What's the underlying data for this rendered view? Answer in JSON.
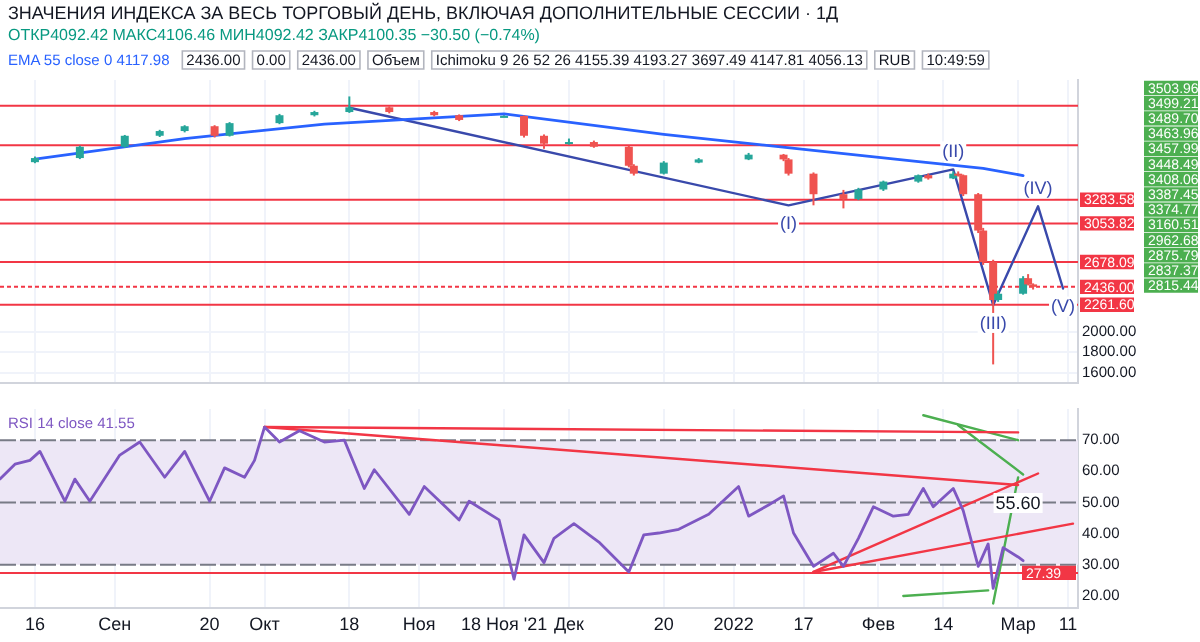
{
  "chart_data": [
    {
      "type": "candlestick",
      "title": "ЗНАЧЕНИЯ ИНДЕКСА ЗА ВЕСЬ ТОРГОВЫЙ ДЕНЬ, ВКЛЮЧАЯ ДОПОЛНИТЕЛЬНЫЕ СЕССИИ · 1Д",
      "subtitle": "ОТКР4092.42 МАКС4106.46 МИН4092.42 ЗАКР4100.35 −30.50 (−0.74%)",
      "x": [
        "2021-08-16",
        "2021-08-25",
        "2021-09-03",
        "2021-09-10",
        "2021-09-15",
        "2021-09-21",
        "2021-09-24",
        "2021-10-04",
        "2021-10-11",
        "2021-10-18",
        "2021-10-26",
        "2021-11-04",
        "2021-11-09",
        "2021-11-18",
        "2021-11-22",
        "2021-11-26",
        "2021-12-01",
        "2021-12-06",
        "2021-12-13",
        "2021-12-14",
        "2021-12-20",
        "2021-12-27",
        "2022-01-06",
        "2022-01-13",
        "2022-01-14",
        "2022-01-19",
        "2022-01-25",
        "2022-01-28",
        "2022-02-02",
        "2022-02-09",
        "2022-02-11",
        "2022-02-16",
        "2022-02-17",
        "2022-02-18",
        "2022-02-21",
        "2022-02-22",
        "2022-02-24",
        "2022-02-25",
        "2022-03-02",
        "2022-03-03",
        "2022-03-04"
      ],
      "ohlc": [
        [
          3650,
          3705,
          3640,
          3690
        ],
        [
          3690,
          3810,
          3680,
          3800
        ],
        [
          3800,
          3915,
          3790,
          3907
        ],
        [
          3907,
          3965,
          3895,
          3953
        ],
        [
          3953,
          4010,
          3940,
          4000
        ],
        [
          4000,
          4010,
          3890,
          3907
        ],
        [
          3907,
          4040,
          3900,
          4030
        ],
        [
          4030,
          4120,
          4020,
          4107
        ],
        [
          4107,
          4150,
          4095,
          4138
        ],
        [
          4138,
          4290,
          4130,
          4184
        ],
        [
          4184,
          4195,
          4125,
          4138
        ],
        [
          4138,
          4150,
          4095,
          4107
        ],
        [
          4107,
          4115,
          4050,
          4061
        ],
        [
          4092.42,
          4106.46,
          4092.42,
          4100.35
        ],
        [
          4100,
          4105,
          3890,
          3907
        ],
        [
          3907,
          3920,
          3780,
          3830
        ],
        [
          3830,
          3880,
          3820,
          3846
        ],
        [
          3846,
          3860,
          3790,
          3800
        ],
        [
          3800,
          3810,
          3600,
          3615
        ],
        [
          3615,
          3630,
          3520,
          3538
        ],
        [
          3538,
          3660,
          3530,
          3646
        ],
        [
          3646,
          3690,
          3640,
          3677
        ],
        [
          3677,
          3740,
          3670,
          3723
        ],
        [
          3723,
          3730,
          3660,
          3677
        ],
        [
          3677,
          3690,
          3520,
          3538
        ],
        [
          3538,
          3550,
          3230,
          3338
        ],
        [
          3338,
          3380,
          3200,
          3292
        ],
        [
          3292,
          3400,
          3280,
          3384
        ],
        [
          3384,
          3470,
          3370,
          3461
        ],
        [
          3461,
          3530,
          3450,
          3523
        ],
        [
          3523,
          3540,
          3480,
          3492
        ],
        [
          3492,
          3560,
          3485,
          3538
        ],
        [
          3538,
          3560,
          3510,
          3523
        ],
        [
          3523,
          3530,
          3320,
          3338
        ],
        [
          3338,
          3350,
          2960,
          2984
        ],
        [
          2984,
          3010,
          2650,
          2677
        ],
        [
          2677,
          2700,
          1681,
          2308
        ],
        [
          2308,
          2400,
          2290,
          2369
        ],
        [
          2369,
          2540,
          2360,
          2520
        ],
        [
          2520,
          2560,
          2450,
          2460
        ],
        [
          2460,
          2470,
          2410,
          2436
        ]
      ],
      "series": [
        {
          "type": "line",
          "name": "EMA 55 close 0 4117.98",
          "color": "#2962ff",
          "x": [
            "2021-08-16",
            "2021-09-15",
            "2021-10-13",
            "2021-11-18",
            "2021-12-20",
            "2022-01-18",
            "2022-02-10",
            "2022-02-22",
            "2022-03-02"
          ],
          "values": [
            3680,
            3880,
            4020,
            4120,
            3920,
            3770,
            3650,
            3590,
            3520
          ]
        },
        {
          "type": "line",
          "color": "#3949ab",
          "x": [
            "2021-10-18",
            "2022-01-14",
            "2022-02-16",
            "2022-02-24",
            "2022-03-05",
            "2022-03-10"
          ],
          "values": [
            4180,
            3230,
            3580,
            2260,
            3220,
            2420
          ]
        }
      ],
      "ref_lines": [
        {
          "axis": "y",
          "value": 4200,
          "color": "#f23645"
        },
        {
          "axis": "y",
          "value": 3815,
          "color": "#f23645"
        },
        {
          "axis": "y",
          "value": 3283.58,
          "label": "3283.58",
          "color": "#f23645"
        },
        {
          "axis": "y",
          "value": 3053.82,
          "label": "3053.82",
          "color": "#f23645"
        },
        {
          "axis": "y",
          "value": 2678.09,
          "label": "2678.09",
          "color": "#f23645"
        },
        {
          "axis": "y",
          "value": 2436.0,
          "label": "2436.00",
          "color": "#f23645",
          "line_style": "dotted"
        },
        {
          "axis": "y",
          "value": 2261.6,
          "label": "2261.60",
          "color": "#f23645"
        }
      ],
      "annotations": [
        "2436.00",
        "0.00",
        "2436.00",
        "Объем",
        "Ichimoku 9 26 52 26 4155.39 4193.27 3697.49 4147.81 4056.13",
        "RUB",
        "10:49:59",
        {
          "text": "(I)",
          "x": "2022-01-14",
          "y": 3230
        },
        {
          "text": "(II)",
          "x": "2022-02-16",
          "y": 3580
        },
        {
          "text": "(III)",
          "x": "2022-02-24",
          "y": 2260
        },
        {
          "text": "(IV)",
          "x": "2022-03-05",
          "y": 3220
        },
        {
          "text": "(V)",
          "x": "2022-03-10",
          "y": 2420
        },
        "3503.96",
        "3499.21",
        "3489.70",
        "3463.96",
        "3457.99",
        "3448.49",
        "3408.06",
        "3387.45",
        "3374.77",
        "3160.51",
        "2962.68",
        "2875.79",
        "2837.37",
        "2815.44"
      ],
      "xlim": [
        "2021-08-09",
        "2022-03-13"
      ],
      "xticks": [
        {
          "value": "2021-08-16",
          "label": null
        },
        {
          "value": "2021-09-01",
          "label": null
        },
        {
          "value": "2021-09-20",
          "label": null
        },
        {
          "value": "2021-10-01",
          "label": null
        },
        {
          "value": "2021-10-18",
          "label": null
        },
        {
          "value": "2021-11-01",
          "label": null
        },
        {
          "value": "2021-11-18",
          "label": null
        },
        {
          "value": "2021-12-01",
          "label": null
        },
        {
          "value": "2021-12-20",
          "label": null
        },
        {
          "value": "2022-01-03",
          "label": null
        },
        {
          "value": "2022-01-17",
          "label": null
        },
        {
          "value": "2022-02-01",
          "label": null
        },
        {
          "value": "2022-02-14",
          "label": null
        },
        {
          "value": "2022-03-01",
          "label": null
        },
        {
          "value": "2022-03-11",
          "label": null
        }
      ],
      "ylim": [
        1500,
        4450
      ],
      "yticks": [
        {
          "value": 1600,
          "label": "1600.00"
        },
        {
          "value": 1800,
          "label": "1800.00"
        },
        {
          "value": 2000,
          "label": "2000.00"
        }
      ],
      "tick_labels": "y",
      "grid": true,
      "legend": "top"
    },
    {
      "type": "line",
      "series": [
        {
          "type": "line",
          "name": "RSI 14 close 41.55",
          "color": "#7e57c2",
          "x": [
            "2021-08-09",
            "2021-08-12",
            "2021-08-15",
            "2021-08-17",
            "2021-08-22",
            "2021-08-24",
            "2021-08-27",
            "2021-09-02",
            "2021-09-06",
            "2021-09-11",
            "2021-09-15",
            "2021-09-20",
            "2021-09-23",
            "2021-09-27",
            "2021-09-29",
            "2021-10-01",
            "2021-10-04",
            "2021-10-08",
            "2021-10-13",
            "2021-10-17",
            "2021-10-21",
            "2021-10-23",
            "2021-10-30",
            "2021-11-02",
            "2021-11-04",
            "2021-11-09",
            "2021-11-11",
            "2021-11-17",
            "2021-11-20",
            "2021-11-22",
            "2021-11-26",
            "2021-11-28",
            "2021-12-02",
            "2021-12-07",
            "2021-12-13",
            "2021-12-16",
            "2021-12-19",
            "2021-12-23",
            "2021-12-29",
            "2022-01-04",
            "2022-01-06",
            "2022-01-10",
            "2022-01-13",
            "2022-01-15",
            "2022-01-19",
            "2022-01-23",
            "2022-01-25",
            "2022-01-28",
            "2022-01-31",
            "2022-02-04",
            "2022-02-07",
            "2022-02-10",
            "2022-02-12",
            "2022-02-16",
            "2022-02-18",
            "2022-02-21",
            "2022-02-23",
            "2022-02-24",
            "2022-02-26",
            "2022-03-01",
            "2022-03-02"
          ],
          "values": [
            57.5,
            62.3,
            63.5,
            66.4,
            50.4,
            57.5,
            50.4,
            65.2,
            69.4,
            58.1,
            66.4,
            50.4,
            61.1,
            58.1,
            63.5,
            74.2,
            69.4,
            73.0,
            69.4,
            70.0,
            54.5,
            60.5,
            46.2,
            55.1,
            52.1,
            44.4,
            50.4,
            44.4,
            25.4,
            39.6,
            30.7,
            38.5,
            43.2,
            37.3,
            27.7,
            39.6,
            40.2,
            41.4,
            46.2,
            55.1,
            45.6,
            49.2,
            52.1,
            40.2,
            29.5,
            33.7,
            29.5,
            38.5,
            48.6,
            45.6,
            46.2,
            54.5,
            48.6,
            54.5,
            47.4,
            29.5,
            36.7,
            22.4,
            35.5,
            32.5,
            31.3
          ]
        },
        {
          "type": "line",
          "color": "#f23645",
          "x": [
            "2021-10-01",
            "2022-03-01"
          ],
          "values": [
            74.2,
            72.5
          ]
        },
        {
          "type": "line",
          "color": "#f23645",
          "x": [
            "2021-10-01",
            "2022-03-01"
          ],
          "values": [
            74.2,
            55.6
          ]
        },
        {
          "type": "line",
          "color": "#f23645",
          "x": [
            "2022-01-19",
            "2022-03-05"
          ],
          "values": [
            27.7,
            59.3
          ]
        },
        {
          "type": "line",
          "color": "#f23645",
          "x": [
            "2022-01-19",
            "2022-03-12"
          ],
          "values": [
            27.7,
            43.2
          ]
        },
        {
          "type": "line",
          "color": "#4caf50",
          "x": [
            "2022-02-10",
            "2022-03-01"
          ],
          "values": [
            78,
            70
          ]
        },
        {
          "type": "line",
          "color": "#4caf50",
          "x": [
            "2022-02-17",
            "2022-03-02"
          ],
          "values": [
            74.8,
            59
          ]
        },
        {
          "type": "line",
          "color": "#4caf50",
          "x": [
            "2022-02-06",
            "2022-02-23"
          ],
          "values": [
            20,
            21.8
          ]
        },
        {
          "type": "line",
          "color": "#4caf50",
          "x": [
            "2022-02-24",
            "2022-03-01"
          ],
          "values": [
            17.6,
            58
          ]
        }
      ],
      "ref_lines": [
        {
          "axis": "y",
          "value": 70,
          "color": "#787b86",
          "line_style": "dashed"
        },
        {
          "axis": "y",
          "value": 50,
          "color": "#787b86",
          "line_style": "dashed"
        },
        {
          "axis": "y",
          "value": 30,
          "color": "#787b86",
          "line_style": "dashed"
        },
        {
          "axis": "y",
          "value": 27.39,
          "label": "27.39",
          "color": "#f23645"
        }
      ],
      "bands": [
        {
          "axis": "y",
          "from": 30,
          "to": 70,
          "color": "#ede7f6"
        }
      ],
      "annotations": [
        {
          "text": "55.60",
          "x": "2022-03-01",
          "y": 55.6
        }
      ],
      "xlim": [
        "2021-08-09",
        "2022-03-13"
      ],
      "xticks": [
        {
          "value": "2021-08-16",
          "label": "16"
        },
        {
          "value": "2021-09-01",
          "label": "Сен"
        },
        {
          "value": "2021-09-20",
          "label": "20"
        },
        {
          "value": "2021-10-01",
          "label": "Окт"
        },
        {
          "value": "2021-10-18",
          "label": "18"
        },
        {
          "value": "2021-11-01",
          "label": "Ноя"
        },
        {
          "value": "2021-11-18",
          "label": "18 Ноя '21"
        },
        {
          "value": "2021-12-01",
          "label": "Дек"
        },
        {
          "value": "2021-12-20",
          "label": "20"
        },
        {
          "value": "2022-01-03",
          "label": "2022"
        },
        {
          "value": "2022-01-17",
          "label": "17"
        },
        {
          "value": "2022-02-01",
          "label": "Фев"
        },
        {
          "value": "2022-02-14",
          "label": "14"
        },
        {
          "value": "2022-03-01",
          "label": "Мар"
        },
        {
          "value": "2022-03-11",
          "label": "11"
        }
      ],
      "ylim": [
        16,
        80
      ],
      "yticks": [
        {
          "value": 20,
          "label": "20.00"
        },
        {
          "value": 30,
          "label": "30.00"
        },
        {
          "value": 40,
          "label": "40.00"
        },
        {
          "value": 50,
          "label": "50.00"
        },
        {
          "value": 60,
          "label": "60.00"
        },
        {
          "value": 70,
          "label": "70.00"
        }
      ],
      "grid": "x",
      "legend": "top left"
    }
  ]
}
